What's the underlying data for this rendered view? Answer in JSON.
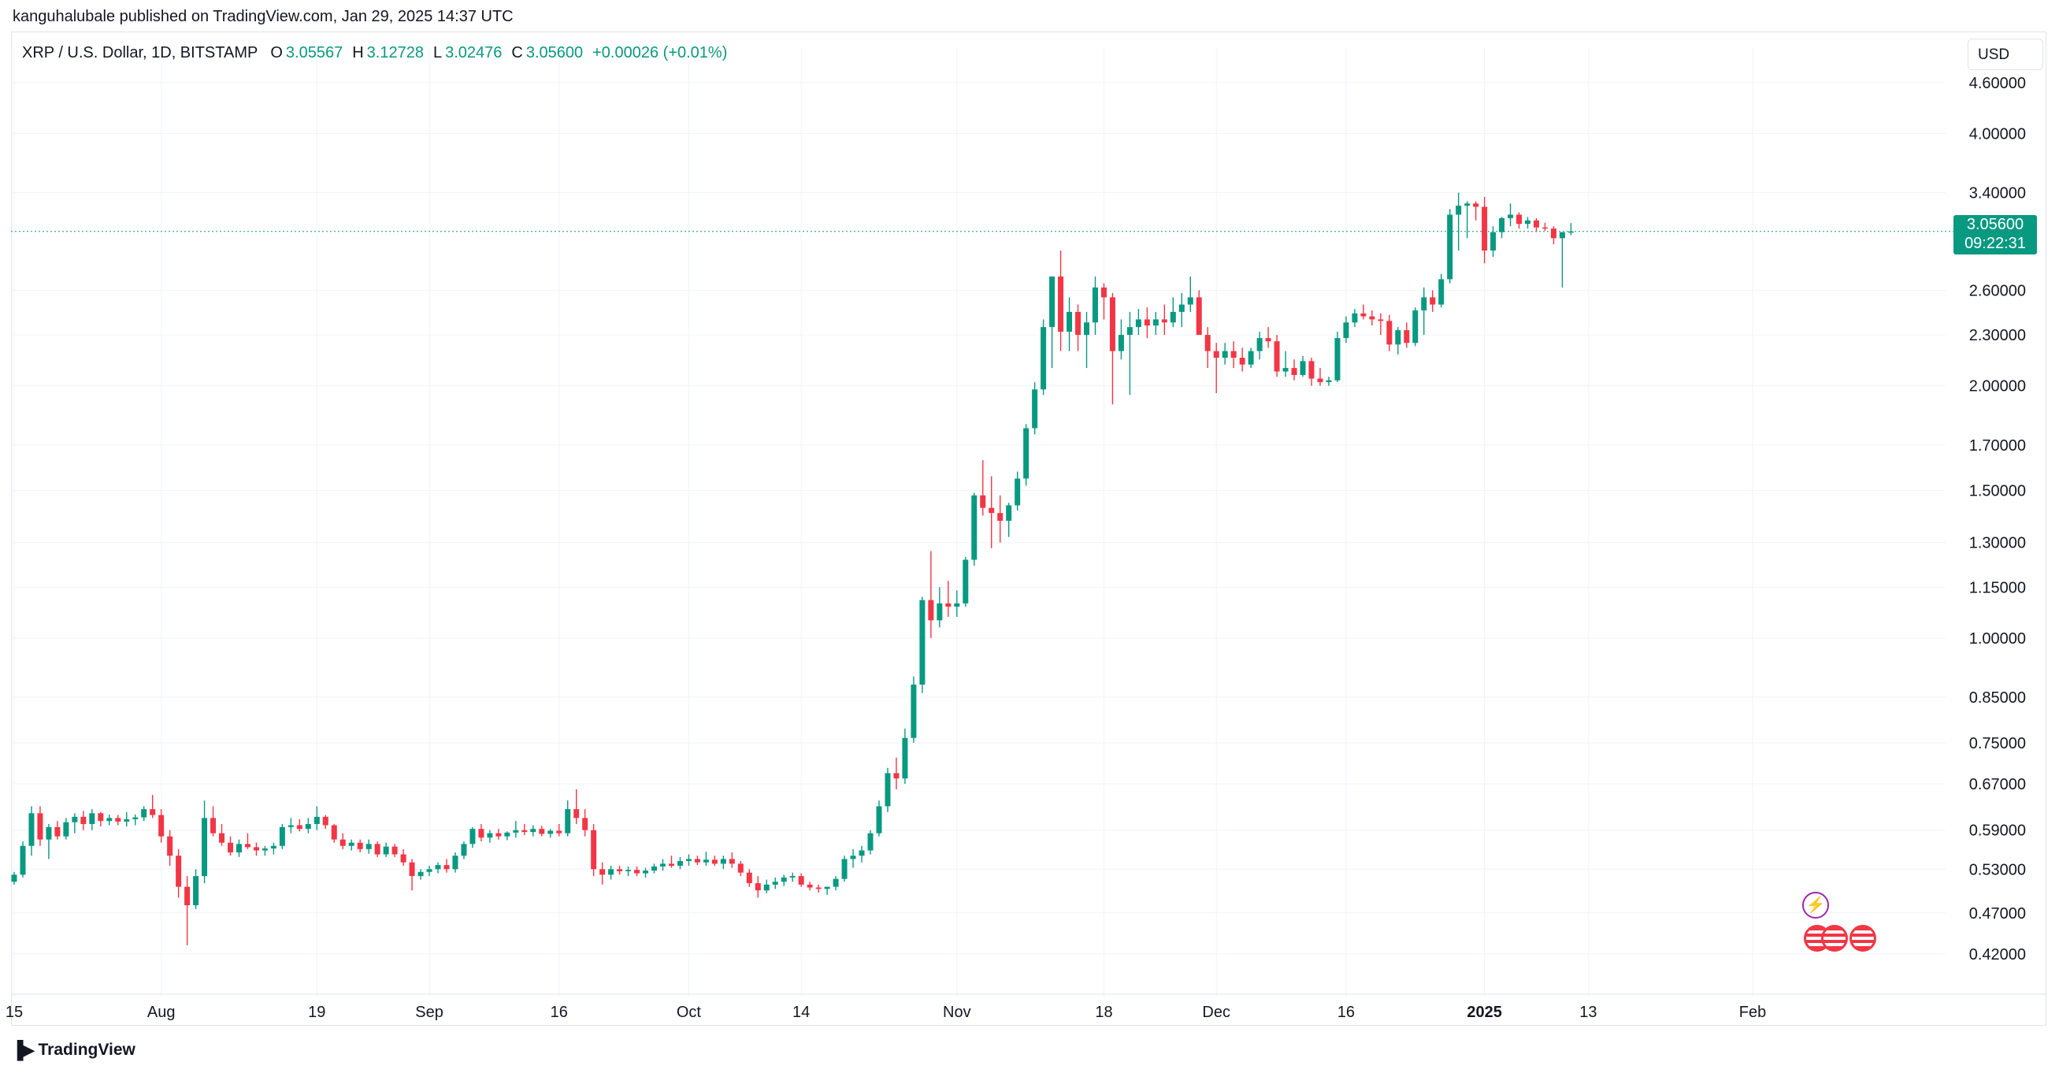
{
  "header": {
    "published": "kanguhalubale published on TradingView.com, Jan 29, 2025 14:37 UTC"
  },
  "legend": {
    "symbol": "XRP / U.S. Dollar, 1D, BITSTAMP",
    "o_label": "O",
    "o_value": "3.05567",
    "h_label": "H",
    "h_value": "3.12728",
    "l_label": "L",
    "l_value": "3.02476",
    "c_label": "C",
    "c_value": "3.05600",
    "change": "+0.00026 (+0.01%)"
  },
  "currency_button": "USD",
  "price_tag": {
    "price": "3.05600",
    "countdown": "09:22:31"
  },
  "footer": {
    "brand": "TradingView"
  },
  "colors": {
    "up": "#089981",
    "down": "#f23645",
    "grid": "#f0f3fa",
    "event_red": "#f23645",
    "event_purple": "#9c27b0"
  },
  "chart_data": {
    "type": "candlestick",
    "title": "XRP / U.S. Dollar, 1D, BITSTAMP",
    "y_scale": "log",
    "ylim": [
      0.39,
      4.75
    ],
    "yticks": [
      "4.60000",
      "4.00000",
      "3.40000",
      "2.60000",
      "2.30000",
      "2.00000",
      "1.70000",
      "1.50000",
      "1.30000",
      "1.15000",
      "1.00000",
      "0.85000",
      "0.75000",
      "0.67000",
      "0.59000",
      "0.53000",
      "0.47000",
      "0.42000"
    ],
    "xticks": [
      {
        "label": "15",
        "day": 0
      },
      {
        "label": "Aug",
        "day": 17
      },
      {
        "label": "19",
        "day": 35
      },
      {
        "label": "Sep",
        "day": 48
      },
      {
        "label": "16",
        "day": 63
      },
      {
        "label": "Oct",
        "day": 78
      },
      {
        "label": "14",
        "day": 91
      },
      {
        "label": "Nov",
        "day": 109
      },
      {
        "label": "18",
        "day": 126
      },
      {
        "label": "Dec",
        "day": 139
      },
      {
        "label": "16",
        "day": 154
      },
      {
        "label": "2025",
        "day": 170,
        "bold": true
      },
      {
        "label": "13",
        "day": 182
      },
      {
        "label": "Feb",
        "day": 201
      }
    ],
    "last_price": 3.056,
    "candles_ohlc": [
      [
        0.512,
        0.526,
        0.508,
        0.522
      ],
      [
        0.522,
        0.572,
        0.518,
        0.565
      ],
      [
        0.565,
        0.63,
        0.55,
        0.618
      ],
      [
        0.618,
        0.63,
        0.565,
        0.575
      ],
      [
        0.575,
        0.6,
        0.545,
        0.595
      ],
      [
        0.595,
        0.605,
        0.575,
        0.58
      ],
      [
        0.58,
        0.61,
        0.575,
        0.603
      ],
      [
        0.603,
        0.618,
        0.585,
        0.612
      ],
      [
        0.612,
        0.622,
        0.59,
        0.6
      ],
      [
        0.6,
        0.625,
        0.59,
        0.618
      ],
      [
        0.618,
        0.62,
        0.596,
        0.605
      ],
      [
        0.605,
        0.616,
        0.598,
        0.61
      ],
      [
        0.61,
        0.615,
        0.598,
        0.604
      ],
      [
        0.604,
        0.62,
        0.596,
        0.608
      ],
      [
        0.608,
        0.616,
        0.598,
        0.611
      ],
      [
        0.611,
        0.63,
        0.605,
        0.625
      ],
      [
        0.625,
        0.65,
        0.61,
        0.615
      ],
      [
        0.615,
        0.625,
        0.57,
        0.58
      ],
      [
        0.58,
        0.59,
        0.535,
        0.55
      ],
      [
        0.55,
        0.56,
        0.49,
        0.505
      ],
      [
        0.505,
        0.52,
        0.43,
        0.48
      ],
      [
        0.48,
        0.53,
        0.475,
        0.52
      ],
      [
        0.52,
        0.64,
        0.51,
        0.61
      ],
      [
        0.61,
        0.63,
        0.58,
        0.585
      ],
      [
        0.585,
        0.6,
        0.565,
        0.57
      ],
      [
        0.57,
        0.58,
        0.55,
        0.555
      ],
      [
        0.555,
        0.575,
        0.548,
        0.568
      ],
      [
        0.568,
        0.585,
        0.56,
        0.563
      ],
      [
        0.563,
        0.57,
        0.55,
        0.558
      ],
      [
        0.558,
        0.565,
        0.55,
        0.561
      ],
      [
        0.561,
        0.57,
        0.552,
        0.565
      ],
      [
        0.565,
        0.6,
        0.56,
        0.595
      ],
      [
        0.595,
        0.61,
        0.585,
        0.598
      ],
      [
        0.598,
        0.608,
        0.588,
        0.592
      ],
      [
        0.592,
        0.61,
        0.585,
        0.6
      ],
      [
        0.6,
        0.63,
        0.59,
        0.612
      ],
      [
        0.612,
        0.615,
        0.592,
        0.598
      ],
      [
        0.598,
        0.6,
        0.57,
        0.575
      ],
      [
        0.575,
        0.585,
        0.56,
        0.565
      ],
      [
        0.565,
        0.575,
        0.558,
        0.57
      ],
      [
        0.57,
        0.575,
        0.555,
        0.56
      ],
      [
        0.56,
        0.575,
        0.553,
        0.568
      ],
      [
        0.568,
        0.572,
        0.548,
        0.552
      ],
      [
        0.552,
        0.57,
        0.548,
        0.564
      ],
      [
        0.564,
        0.568,
        0.548,
        0.552
      ],
      [
        0.552,
        0.56,
        0.535,
        0.54
      ],
      [
        0.54,
        0.545,
        0.5,
        0.52
      ],
      [
        0.52,
        0.53,
        0.515,
        0.526
      ],
      [
        0.526,
        0.535,
        0.52,
        0.53
      ],
      [
        0.53,
        0.54,
        0.524,
        0.536
      ],
      [
        0.536,
        0.545,
        0.525,
        0.53
      ],
      [
        0.53,
        0.555,
        0.525,
        0.55
      ],
      [
        0.55,
        0.572,
        0.545,
        0.568
      ],
      [
        0.568,
        0.595,
        0.562,
        0.592
      ],
      [
        0.592,
        0.6,
        0.572,
        0.578
      ],
      [
        0.578,
        0.59,
        0.57,
        0.585
      ],
      [
        0.585,
        0.592,
        0.575,
        0.58
      ],
      [
        0.58,
        0.588,
        0.574,
        0.586
      ],
      [
        0.586,
        0.605,
        0.578,
        0.59
      ],
      [
        0.59,
        0.6,
        0.582,
        0.587
      ],
      [
        0.587,
        0.598,
        0.58,
        0.592
      ],
      [
        0.592,
        0.597,
        0.58,
        0.584
      ],
      [
        0.584,
        0.592,
        0.578,
        0.589
      ],
      [
        0.589,
        0.6,
        0.58,
        0.585
      ],
      [
        0.585,
        0.64,
        0.58,
        0.625
      ],
      [
        0.625,
        0.66,
        0.6,
        0.61
      ],
      [
        0.61,
        0.625,
        0.58,
        0.59
      ],
      [
        0.59,
        0.6,
        0.52,
        0.53
      ],
      [
        0.53,
        0.54,
        0.508,
        0.522
      ],
      [
        0.522,
        0.535,
        0.515,
        0.53
      ],
      [
        0.53,
        0.535,
        0.522,
        0.527
      ],
      [
        0.527,
        0.534,
        0.52,
        0.529
      ],
      [
        0.529,
        0.534,
        0.52,
        0.524
      ],
      [
        0.524,
        0.532,
        0.518,
        0.528
      ],
      [
        0.528,
        0.538,
        0.524,
        0.534
      ],
      [
        0.534,
        0.545,
        0.528,
        0.538
      ],
      [
        0.538,
        0.55,
        0.532,
        0.535
      ],
      [
        0.535,
        0.548,
        0.53,
        0.542
      ],
      [
        0.542,
        0.552,
        0.535,
        0.545
      ],
      [
        0.545,
        0.55,
        0.536,
        0.54
      ],
      [
        0.54,
        0.556,
        0.535,
        0.544
      ],
      [
        0.544,
        0.55,
        0.535,
        0.538
      ],
      [
        0.538,
        0.55,
        0.53,
        0.545
      ],
      [
        0.545,
        0.555,
        0.532,
        0.538
      ],
      [
        0.538,
        0.542,
        0.52,
        0.525
      ],
      [
        0.525,
        0.53,
        0.505,
        0.51
      ],
      [
        0.51,
        0.52,
        0.49,
        0.5
      ],
      [
        0.5,
        0.515,
        0.496,
        0.508
      ],
      [
        0.508,
        0.518,
        0.502,
        0.512
      ],
      [
        0.512,
        0.522,
        0.506,
        0.518
      ],
      [
        0.518,
        0.525,
        0.512,
        0.52
      ],
      [
        0.52,
        0.524,
        0.505,
        0.508
      ],
      [
        0.508,
        0.512,
        0.5,
        0.504
      ],
      [
        0.504,
        0.508,
        0.497,
        0.502
      ],
      [
        0.502,
        0.505,
        0.494,
        0.505
      ],
      [
        0.505,
        0.52,
        0.5,
        0.516
      ],
      [
        0.516,
        0.55,
        0.512,
        0.545
      ],
      [
        0.545,
        0.56,
        0.532,
        0.55
      ],
      [
        0.55,
        0.565,
        0.54,
        0.558
      ],
      [
        0.558,
        0.59,
        0.552,
        0.585
      ],
      [
        0.585,
        0.64,
        0.58,
        0.63
      ],
      [
        0.63,
        0.7,
        0.62,
        0.69
      ],
      [
        0.69,
        0.72,
        0.66,
        0.68
      ],
      [
        0.68,
        0.78,
        0.67,
        0.76
      ],
      [
        0.76,
        0.9,
        0.75,
        0.88
      ],
      [
        0.88,
        1.12,
        0.86,
        1.11
      ],
      [
        1.11,
        1.27,
        1.0,
        1.05
      ],
      [
        1.05,
        1.15,
        1.03,
        1.1
      ],
      [
        1.1,
        1.17,
        1.06,
        1.09
      ],
      [
        1.09,
        1.14,
        1.06,
        1.1
      ],
      [
        1.1,
        1.25,
        1.09,
        1.24
      ],
      [
        1.24,
        1.49,
        1.22,
        1.48
      ],
      [
        1.48,
        1.63,
        1.4,
        1.43
      ],
      [
        1.43,
        1.56,
        1.28,
        1.41
      ],
      [
        1.41,
        1.48,
        1.3,
        1.38
      ],
      [
        1.38,
        1.45,
        1.32,
        1.44
      ],
      [
        1.44,
        1.58,
        1.42,
        1.55
      ],
      [
        1.55,
        1.8,
        1.52,
        1.78
      ],
      [
        1.78,
        2.02,
        1.75,
        1.98
      ],
      [
        1.98,
        2.4,
        1.95,
        2.35
      ],
      [
        2.35,
        2.7,
        2.1,
        2.7
      ],
      [
        2.7,
        2.9,
        2.2,
        2.32
      ],
      [
        2.32,
        2.55,
        2.2,
        2.45
      ],
      [
        2.45,
        2.5,
        2.2,
        2.3
      ],
      [
        2.3,
        2.45,
        2.1,
        2.38
      ],
      [
        2.38,
        2.7,
        2.3,
        2.62
      ],
      [
        2.62,
        2.65,
        2.4,
        2.55
      ],
      [
        2.55,
        2.58,
        1.9,
        2.2
      ],
      [
        2.2,
        2.4,
        2.15,
        2.3
      ],
      [
        2.3,
        2.45,
        1.95,
        2.35
      ],
      [
        2.35,
        2.47,
        2.3,
        2.4
      ],
      [
        2.4,
        2.48,
        2.28,
        2.36
      ],
      [
        2.36,
        2.45,
        2.3,
        2.4
      ],
      [
        2.4,
        2.5,
        2.3,
        2.38
      ],
      [
        2.38,
        2.55,
        2.35,
        2.45
      ],
      [
        2.45,
        2.58,
        2.35,
        2.5
      ],
      [
        2.5,
        2.7,
        2.45,
        2.55
      ],
      [
        2.55,
        2.6,
        2.3,
        2.3
      ],
      [
        2.3,
        2.35,
        2.1,
        2.2
      ],
      [
        2.2,
        2.25,
        1.96,
        2.16
      ],
      [
        2.16,
        2.25,
        2.12,
        2.2
      ],
      [
        2.2,
        2.26,
        2.1,
        2.16
      ],
      [
        2.16,
        2.22,
        2.08,
        2.12
      ],
      [
        2.12,
        2.22,
        2.1,
        2.2
      ],
      [
        2.2,
        2.32,
        2.15,
        2.28
      ],
      [
        2.28,
        2.35,
        2.22,
        2.26
      ],
      [
        2.26,
        2.3,
        2.05,
        2.08
      ],
      [
        2.08,
        2.2,
        2.05,
        2.1
      ],
      [
        2.1,
        2.15,
        2.03,
        2.06
      ],
      [
        2.06,
        2.17,
        2.05,
        2.14
      ],
      [
        2.14,
        2.16,
        2.0,
        2.04
      ],
      [
        2.04,
        2.1,
        2.0,
        2.02
      ],
      [
        2.02,
        2.05,
        2.0,
        2.03
      ],
      [
        2.03,
        2.32,
        2.02,
        2.28
      ],
      [
        2.28,
        2.42,
        2.25,
        2.38
      ],
      [
        2.38,
        2.47,
        2.35,
        2.44
      ],
      [
        2.44,
        2.5,
        2.4,
        2.42
      ],
      [
        2.42,
        2.46,
        2.36,
        2.4
      ],
      [
        2.4,
        2.44,
        2.3,
        2.39
      ],
      [
        2.39,
        2.43,
        2.2,
        2.24
      ],
      [
        2.24,
        2.35,
        2.18,
        2.33
      ],
      [
        2.33,
        2.38,
        2.22,
        2.25
      ],
      [
        2.25,
        2.48,
        2.23,
        2.46
      ],
      [
        2.46,
        2.62,
        2.3,
        2.55
      ],
      [
        2.55,
        2.6,
        2.45,
        2.5
      ],
      [
        2.5,
        2.72,
        2.48,
        2.68
      ],
      [
        2.68,
        3.25,
        2.65,
        3.2
      ],
      [
        3.2,
        3.4,
        2.9,
        3.28
      ],
      [
        3.28,
        3.32,
        3.0,
        3.3
      ],
      [
        3.3,
        3.32,
        3.15,
        3.27
      ],
      [
        3.27,
        3.36,
        2.8,
        2.9
      ],
      [
        2.9,
        3.1,
        2.85,
        3.05
      ],
      [
        3.05,
        3.18,
        3.0,
        3.17
      ],
      [
        3.17,
        3.3,
        3.1,
        3.2
      ],
      [
        3.2,
        3.22,
        3.08,
        3.12
      ],
      [
        3.12,
        3.18,
        3.08,
        3.15
      ],
      [
        3.15,
        3.17,
        3.05,
        3.09
      ],
      [
        3.09,
        3.13,
        3.06,
        3.08
      ],
      [
        3.08,
        3.1,
        2.95,
        3.0
      ],
      [
        3.0,
        3.05,
        2.62,
        3.05
      ],
      [
        3.056,
        3.127,
        3.025,
        3.056
      ]
    ]
  }
}
